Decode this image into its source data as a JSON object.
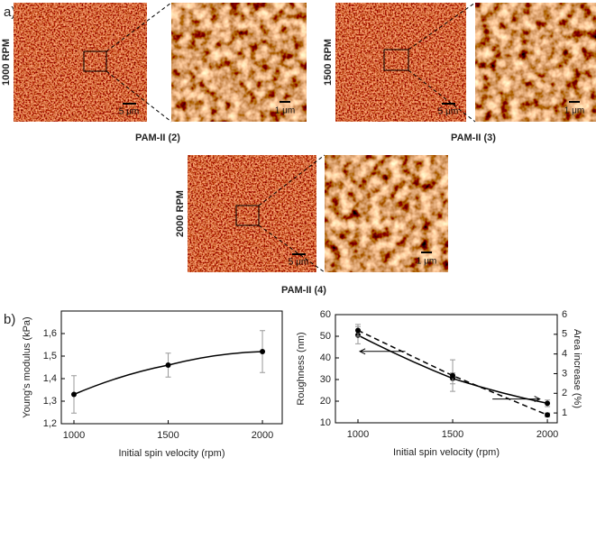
{
  "figure": {
    "panel_a": "a)",
    "panel_b": "b)",
    "samples": [
      {
        "speed": "1000 RPM",
        "name": "PAM-II (2)",
        "scale_large": "5 μm",
        "scale_small": "1 μm"
      },
      {
        "speed": "1500 RPM",
        "name": "PAM-II (3)",
        "scale_large": "5 μm",
        "scale_small": "1 μm"
      },
      {
        "speed": "2000 RPM",
        "name": "PAM-II (4)",
        "scale_large": "5 μm",
        "scale_small": "1 μm"
      }
    ]
  },
  "chart_data": [
    {
      "type": "line",
      "xlabel": "Initial spin velocity (rpm)",
      "ylabel": "Young's modulus (kPa)",
      "x": [
        1000,
        1500,
        2000
      ],
      "series": [
        {
          "color": "#000000",
          "values": [
            1.33,
            1.46,
            1.52
          ],
          "errors": [
            0.083,
            0.053,
            0.093
          ]
        }
      ],
      "xlim": [
        933,
        2105
      ],
      "xticks": [
        1000,
        1500,
        2000
      ],
      "ylim": [
        1.2,
        1.7
      ],
      "yticks": [
        {
          "value": 1.2,
          "label": "1,2"
        },
        {
          "value": 1.3,
          "label": "1,3"
        },
        {
          "value": 1.4,
          "label": "1,4"
        },
        {
          "value": 1.5,
          "label": "1,5"
        },
        {
          "value": 1.6,
          "label": "1,6"
        }
      ]
    },
    {
      "type": "line",
      "xlabel": "Initial spin velocity (rpm)",
      "ylabel": "Roughness (nm)",
      "y2label": "Area increase (%)",
      "x": [
        1000,
        1500,
        2000
      ],
      "series": [
        {
          "color": "#000000",
          "values": [
            50.5,
            30.5,
            19
          ],
          "errors": [
            4,
            2.5,
            1.5
          ]
        },
        {
          "color": "#000000",
          "values": [
            5.2,
            2.9,
            0.9
          ],
          "errors": [
            0.3,
            0.8,
            0.1
          ],
          "axis": "y2",
          "dashed": true
        }
      ],
      "xlim": [
        881,
        2052
      ],
      "xticks": [
        1000,
        1500,
        2000
      ],
      "ylim": [
        10,
        60
      ],
      "yticks": [
        10,
        20,
        30,
        40,
        50,
        60
      ],
      "y2lim": [
        0.5,
        6
      ],
      "y2ticks": [
        1,
        2,
        3,
        4,
        5,
        6
      ]
    }
  ]
}
